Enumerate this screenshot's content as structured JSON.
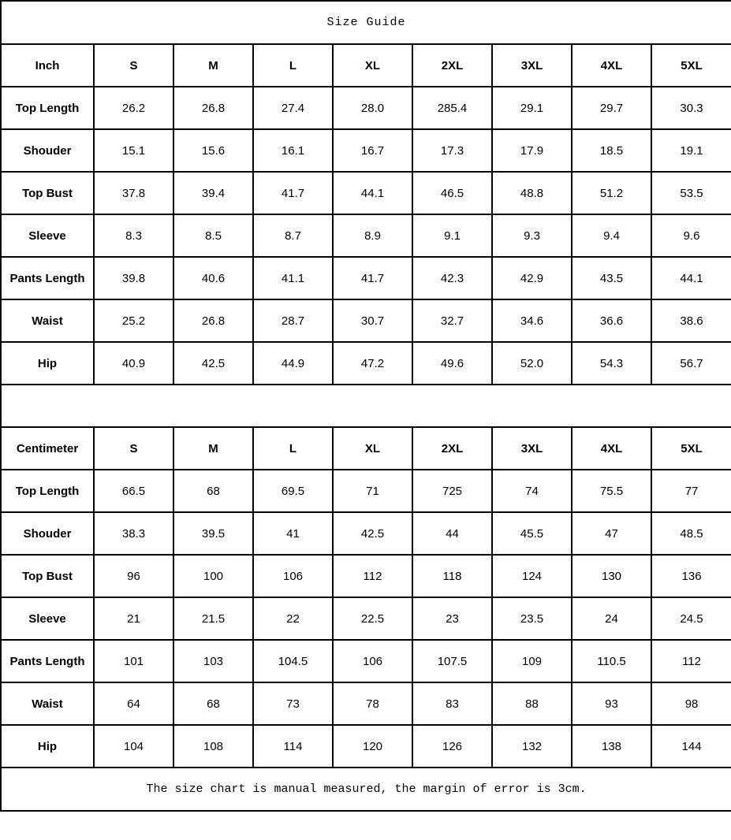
{
  "title": "Size Guide",
  "sizes": [
    "S",
    "M",
    "L",
    "XL",
    "2XL",
    "3XL",
    "4XL",
    "5XL"
  ],
  "tables": [
    {
      "unit": "Inch",
      "rows": [
        {
          "label": "Top Length",
          "values": [
            "26.2",
            "26.8",
            "27.4",
            "28.0",
            "285.4",
            "29.1",
            "29.7",
            "30.3"
          ]
        },
        {
          "label": "Shouder",
          "values": [
            "15.1",
            "15.6",
            "16.1",
            "16.7",
            "17.3",
            "17.9",
            "18.5",
            "19.1"
          ]
        },
        {
          "label": "Top Bust",
          "values": [
            "37.8",
            "39.4",
            "41.7",
            "44.1",
            "46.5",
            "48.8",
            "51.2",
            "53.5"
          ]
        },
        {
          "label": "Sleeve",
          "values": [
            "8.3",
            "8.5",
            "8.7",
            "8.9",
            "9.1",
            "9.3",
            "9.4",
            "9.6"
          ]
        },
        {
          "label": "Pants Length",
          "values": [
            "39.8",
            "40.6",
            "41.1",
            "41.7",
            "42.3",
            "42.9",
            "43.5",
            "44.1"
          ]
        },
        {
          "label": "Waist",
          "values": [
            "25.2",
            "26.8",
            "28.7",
            "30.7",
            "32.7",
            "34.6",
            "36.6",
            "38.6"
          ]
        },
        {
          "label": "Hip",
          "values": [
            "40.9",
            "42.5",
            "44.9",
            "47.2",
            "49.6",
            "52.0",
            "54.3",
            "56.7"
          ]
        }
      ]
    },
    {
      "unit": "Centimeter",
      "rows": [
        {
          "label": "Top Length",
          "values": [
            "66.5",
            "68",
            "69.5",
            "71",
            "725",
            "74",
            "75.5",
            "77"
          ]
        },
        {
          "label": "Shouder",
          "values": [
            "38.3",
            "39.5",
            "41",
            "42.5",
            "44",
            "45.5",
            "47",
            "48.5"
          ]
        },
        {
          "label": "Top Bust",
          "values": [
            "96",
            "100",
            "106",
            "112",
            "118",
            "124",
            "130",
            "136"
          ]
        },
        {
          "label": "Sleeve",
          "values": [
            "21",
            "21.5",
            "22",
            "22.5",
            "23",
            "23.5",
            "24",
            "24.5"
          ]
        },
        {
          "label": "Pants Length",
          "values": [
            "101",
            "103",
            "104.5",
            "106",
            "107.5",
            "109",
            "110.5",
            "112"
          ]
        },
        {
          "label": "Waist",
          "values": [
            "64",
            "68",
            "73",
            "78",
            "83",
            "88",
            "93",
            "98"
          ]
        },
        {
          "label": "Hip",
          "values": [
            "104",
            "108",
            "114",
            "120",
            "126",
            "132",
            "138",
            "144"
          ]
        }
      ]
    }
  ],
  "footer_note": "The size chart is manual measured, the margin of error is 3cm.",
  "colors": {
    "border": "#000000",
    "background": "#ffffff",
    "text": "#000000"
  }
}
